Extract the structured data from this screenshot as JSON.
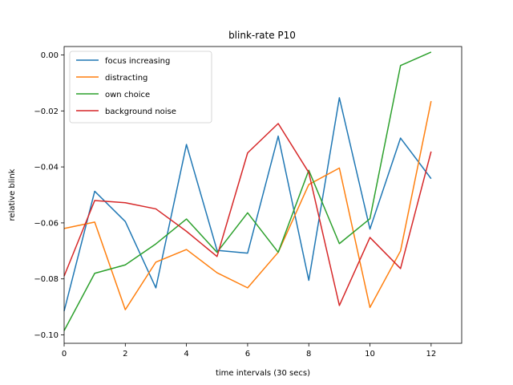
{
  "chart_data": {
    "type": "line",
    "title": "blink-rate P10",
    "xlabel": "time intervals (30 secs)",
    "ylabel": "relative blink",
    "xlim": [
      0,
      13
    ],
    "ylim": [
      -0.103,
      0.003
    ],
    "xticks": [
      0,
      2,
      4,
      6,
      8,
      10,
      12
    ],
    "yticks": [
      0.0,
      -0.02,
      -0.04,
      -0.06,
      -0.08,
      -0.1
    ],
    "ytick_labels": [
      "0.00",
      "−0.02",
      "−0.04",
      "−0.06",
      "−0.08",
      "−0.10"
    ],
    "grid": false,
    "legend_position": "top-left",
    "x": [
      0,
      1,
      2,
      3,
      4,
      5,
      6,
      7,
      8,
      9,
      10,
      11,
      12
    ],
    "series": [
      {
        "name": "focus increasing",
        "color": "#1f77b4",
        "values": [
          -0.0915,
          -0.0487,
          -0.0595,
          -0.0832,
          -0.032,
          -0.0698,
          -0.0708,
          -0.029,
          -0.0805,
          -0.0153,
          -0.0622,
          -0.0297,
          -0.0442
        ]
      },
      {
        "name": "distracting",
        "color": "#ff7f0e",
        "values": [
          -0.062,
          -0.0597,
          -0.091,
          -0.074,
          -0.0695,
          -0.0778,
          -0.0832,
          -0.0705,
          -0.0463,
          -0.0404,
          -0.0902,
          -0.07,
          -0.0165
        ]
      },
      {
        "name": "own choice",
        "color": "#2ca02c",
        "values": [
          -0.0985,
          -0.078,
          -0.075,
          -0.0675,
          -0.0586,
          -0.0705,
          -0.0564,
          -0.0705,
          -0.0412,
          -0.0674,
          -0.0585,
          -0.0038,
          0.001
        ]
      },
      {
        "name": "background noise",
        "color": "#d62728",
        "values": [
          -0.079,
          -0.052,
          -0.0528,
          -0.055,
          -0.063,
          -0.072,
          -0.035,
          -0.0245,
          -0.042,
          -0.0895,
          -0.0652,
          -0.0763,
          -0.0345
        ]
      }
    ]
  }
}
